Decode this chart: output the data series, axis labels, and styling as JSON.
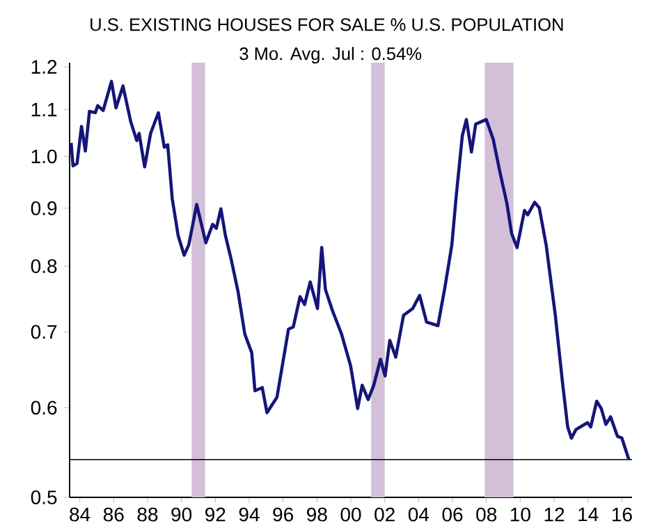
{
  "chart_data": {
    "type": "line",
    "title": "U.S. EXISTING HOUSES FOR SALE % U.S. POPULATION",
    "subtitle": "3 Mo. Avg.    Jul : 0.54%",
    "log": "y",
    "xlim": [
      1983.4,
      2016.6
    ],
    "ylim": [
      0.5,
      1.21
    ],
    "xticks": [
      {
        "value": 1984,
        "label": "84"
      },
      {
        "value": 1986,
        "label": "86"
      },
      {
        "value": 1988,
        "label": "88"
      },
      {
        "value": 1990,
        "label": "90"
      },
      {
        "value": 1992,
        "label": "92"
      },
      {
        "value": 1994,
        "label": "94"
      },
      {
        "value": 1996,
        "label": "96"
      },
      {
        "value": 1998,
        "label": "98"
      },
      {
        "value": 2000,
        "label": "00"
      },
      {
        "value": 2002,
        "label": "02"
      },
      {
        "value": 2004,
        "label": "04"
      },
      {
        "value": 2006,
        "label": "06"
      },
      {
        "value": 2008,
        "label": "08"
      },
      {
        "value": 2010,
        "label": "10"
      },
      {
        "value": 2012,
        "label": "12"
      },
      {
        "value": 2014,
        "label": "14"
      },
      {
        "value": 2016,
        "label": "16"
      }
    ],
    "yticks": [
      0.5,
      0.6,
      0.7,
      0.8,
      0.9,
      {
        "value": 1.0,
        "label": "1.0"
      },
      1.1,
      1.2
    ],
    "bands": [
      {
        "axis": "x",
        "from": 1990.6,
        "to": 1991.4,
        "color": "#d4bfd8"
      },
      {
        "axis": "x",
        "from": 2001.2,
        "to": 2002.0,
        "color": "#d4bfd8"
      },
      {
        "axis": "x",
        "from": 2007.9,
        "to": 2009.6,
        "color": "#d4bfd8"
      }
    ],
    "ref_lines": [
      {
        "axis": "y",
        "value": 0.54,
        "color": "#000000"
      }
    ],
    "series": [
      {
        "color": "#15157a",
        "x": [
          1983.49,
          1983.6,
          1983.84,
          1984.1,
          1984.33,
          1984.57,
          1984.92,
          1985.06,
          1985.38,
          1985.87,
          1986.14,
          1986.55,
          1987.01,
          1987.36,
          1987.5,
          1987.83,
          1988.18,
          1988.64,
          1988.99,
          1989.19,
          1989.46,
          1989.81,
          1990.16,
          1990.43,
          1990.9,
          1991.44,
          1991.84,
          1992.06,
          1992.33,
          1992.6,
          1992.93,
          1993.34,
          1993.74,
          1994.15,
          1994.34,
          1994.77,
          1995.05,
          1995.64,
          1996.32,
          1996.6,
          1997.0,
          1997.27,
          1997.6,
          1998.03,
          1998.28,
          1998.5,
          1998.9,
          1999.45,
          1999.99,
          2000.4,
          2000.67,
          2001.02,
          2001.35,
          2001.75,
          2002.02,
          2002.3,
          2002.65,
          2003.11,
          2003.65,
          2004.06,
          2004.47,
          2005.14,
          2005.55,
          2005.96,
          2006.23,
          2006.58,
          2006.82,
          2007.12,
          2007.37,
          2007.99,
          2008.4,
          2008.81,
          2009.21,
          2009.49,
          2009.81,
          2010.25,
          2010.44,
          2010.85,
          2011.12,
          2011.53,
          2012.07,
          2012.48,
          2012.8,
          2013.02,
          2013.29,
          2013.97,
          2014.16,
          2014.51,
          2014.78,
          2015.05,
          2015.33,
          2015.74,
          2016.0,
          2016.41
        ],
        "values": [
          1.028,
          0.981,
          0.986,
          1.063,
          1.011,
          1.096,
          1.093,
          1.109,
          1.098,
          1.165,
          1.104,
          1.154,
          1.073,
          1.033,
          1.048,
          0.979,
          1.048,
          1.093,
          1.019,
          1.024,
          0.917,
          0.851,
          0.818,
          0.835,
          0.907,
          0.839,
          0.871,
          0.864,
          0.899,
          0.851,
          0.812,
          0.76,
          0.697,
          0.671,
          0.621,
          0.625,
          0.594,
          0.613,
          0.704,
          0.707,
          0.752,
          0.74,
          0.775,
          0.734,
          0.831,
          0.763,
          0.732,
          0.697,
          0.653,
          0.599,
          0.628,
          0.61,
          0.628,
          0.662,
          0.64,
          0.688,
          0.665,
          0.724,
          0.734,
          0.754,
          0.714,
          0.709,
          0.766,
          0.835,
          0.926,
          1.043,
          1.078,
          1.009,
          1.068,
          1.078,
          1.036,
          0.967,
          0.909,
          0.855,
          0.831,
          0.896,
          0.888,
          0.911,
          0.901,
          0.835,
          0.724,
          0.634,
          0.577,
          0.564,
          0.574,
          0.582,
          0.577,
          0.608,
          0.599,
          0.58,
          0.589,
          0.566,
          0.564,
          0.54
        ]
      }
    ]
  }
}
